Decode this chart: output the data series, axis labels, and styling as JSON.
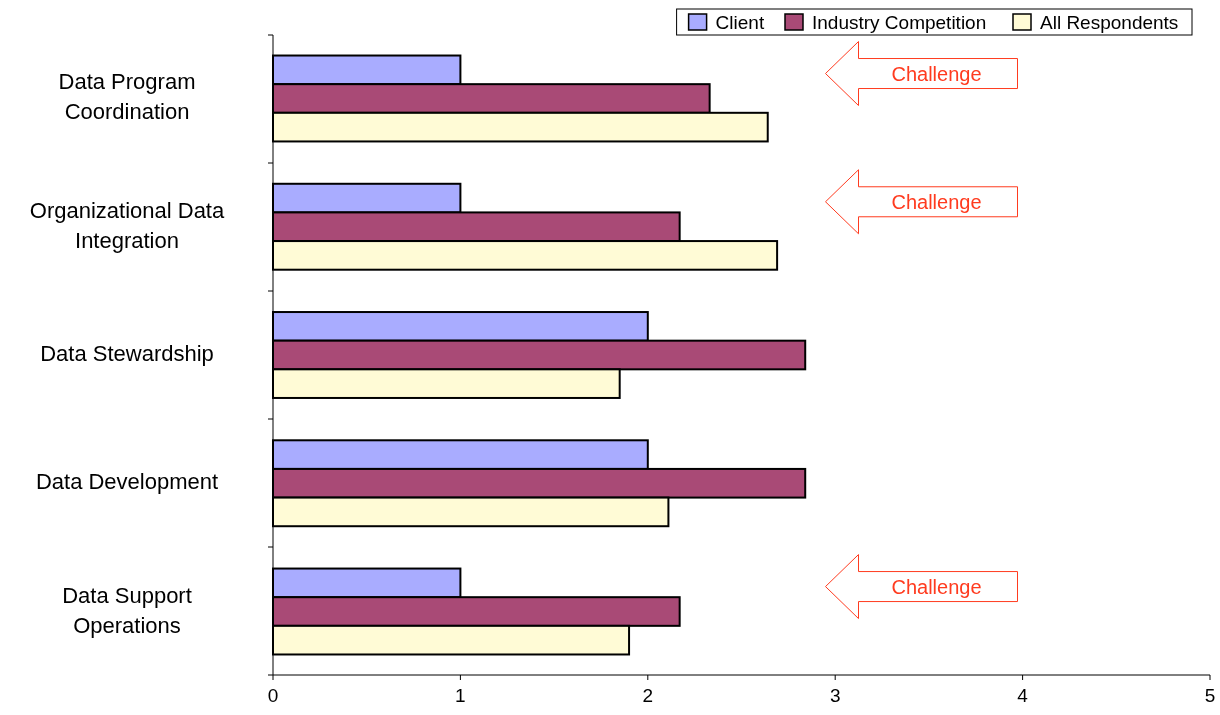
{
  "chart_data": {
    "type": "bar",
    "orientation": "horizontal",
    "categories": [
      "Data Program Coordination",
      "Organizational Data Integration",
      "Data Stewardship",
      "Data Development",
      "Data Support Operations"
    ],
    "series": [
      {
        "name": "Client",
        "color": "#a9acff",
        "values": [
          1.0,
          1.0,
          2.0,
          2.0,
          1.0
        ]
      },
      {
        "name": "Industry Competition",
        "color": "#a94a76",
        "values": [
          2.33,
          2.17,
          2.84,
          2.84,
          2.17
        ]
      },
      {
        "name": "All Respondents",
        "color": "#fffbd6",
        "values": [
          2.64,
          2.69,
          1.85,
          2.11,
          1.9
        ]
      }
    ],
    "xlim": [
      0,
      5
    ],
    "xticks": [
      0,
      1,
      2,
      3,
      4,
      5
    ],
    "grid": false,
    "legend": "top right",
    "annotations": [
      "Challenge",
      "Challenge",
      "Challenge"
    ]
  }
}
